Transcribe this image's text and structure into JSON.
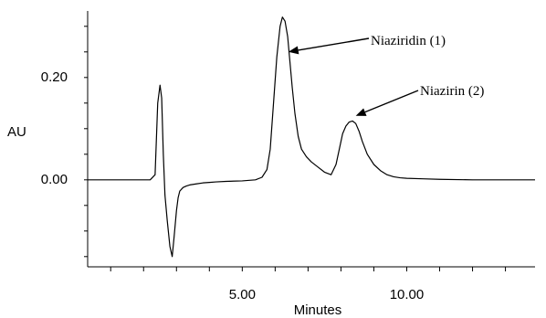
{
  "chart_data": {
    "type": "line",
    "title": "",
    "xlabel": "Minutes",
    "ylabel": "AU",
    "xlim": [
      0.3,
      13.9
    ],
    "ylim": [
      -0.17,
      0.33
    ],
    "x_ticks": [
      {
        "value": 5.0,
        "label": "5.00"
      },
      {
        "value": 10.0,
        "label": "10.00"
      }
    ],
    "y_ticks": [
      {
        "value": 0.0,
        "label": "0.00"
      },
      {
        "value": 0.2,
        "label": "0.20"
      }
    ],
    "x_minor_step": 1.0,
    "y_minor_step": 0.05,
    "grid": false,
    "line_color": "#000000",
    "series": [
      {
        "x": [
          0.3,
          1.0,
          1.5,
          2.0,
          2.2,
          2.35,
          2.43,
          2.5,
          2.55,
          2.6,
          2.65,
          2.72,
          2.8,
          2.87,
          2.93,
          3.0,
          3.05,
          3.1,
          3.2,
          3.3,
          3.4,
          3.6,
          3.8,
          4.0,
          4.2,
          4.5,
          5.0,
          5.4,
          5.6,
          5.75,
          5.85,
          5.95,
          6.05,
          6.15,
          6.22,
          6.3,
          6.38,
          6.45,
          6.52,
          6.6,
          6.7,
          6.8,
          6.95,
          7.1,
          7.3,
          7.5,
          7.7,
          7.85,
          7.95,
          8.05,
          8.15,
          8.25,
          8.35,
          8.45,
          8.55,
          8.65,
          8.8,
          9.0,
          9.2,
          9.4,
          9.6,
          9.8,
          10.0,
          10.5,
          11.0,
          12.0,
          13.0,
          13.9
        ],
        "y": [
          0.0,
          0.0,
          0.0,
          0.0,
          0.0,
          0.01,
          0.15,
          0.185,
          0.16,
          0.05,
          -0.03,
          -0.08,
          -0.13,
          -0.15,
          -0.11,
          -0.06,
          -0.035,
          -0.022,
          -0.015,
          -0.012,
          -0.01,
          -0.008,
          -0.006,
          -0.005,
          -0.004,
          -0.003,
          -0.002,
          0.0,
          0.005,
          0.02,
          0.06,
          0.15,
          0.24,
          0.3,
          0.318,
          0.31,
          0.28,
          0.23,
          0.18,
          0.13,
          0.085,
          0.06,
          0.045,
          0.035,
          0.025,
          0.015,
          0.01,
          0.03,
          0.06,
          0.09,
          0.105,
          0.113,
          0.115,
          0.11,
          0.095,
          0.075,
          0.05,
          0.03,
          0.018,
          0.01,
          0.006,
          0.004,
          0.003,
          0.002,
          0.001,
          0.0,
          0.0,
          0.0
        ]
      }
    ],
    "annotations": [
      {
        "text": "Niaziridin (1)",
        "x": 6.4,
        "y": 0.25
      },
      {
        "text": "Niazirin (2)",
        "x": 8.45,
        "y": 0.125
      }
    ]
  }
}
